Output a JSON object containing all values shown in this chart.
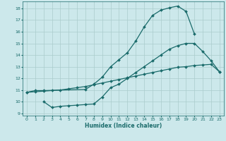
{
  "bg_color": "#cce8eb",
  "grid_color": "#aacccc",
  "line_color": "#1a6b6b",
  "line_width": 0.9,
  "marker": "D",
  "marker_size": 2.0,
  "xlabel": "Humidex (Indice chaleur)",
  "xlim": [
    -0.5,
    23.5
  ],
  "ylim": [
    8.8,
    18.6
  ],
  "xticks": [
    0,
    1,
    2,
    3,
    4,
    5,
    6,
    7,
    8,
    9,
    10,
    11,
    12,
    13,
    14,
    15,
    16,
    17,
    18,
    19,
    20,
    21,
    22,
    23
  ],
  "yticks": [
    9,
    10,
    11,
    12,
    13,
    14,
    15,
    16,
    17,
    18
  ],
  "line1_x": [
    0,
    1,
    2,
    7,
    8,
    9,
    10,
    11,
    12,
    13,
    14,
    15,
    16,
    17,
    18,
    19,
    20
  ],
  "line1_y": [
    10.8,
    10.95,
    10.95,
    11.05,
    11.5,
    12.1,
    13.0,
    13.6,
    14.2,
    15.2,
    16.4,
    17.4,
    17.85,
    18.05,
    18.2,
    17.75,
    15.8
  ],
  "line2_x": [
    0,
    1,
    2,
    3,
    4,
    5,
    6,
    7,
    8,
    9,
    10,
    11,
    12,
    13,
    14,
    15,
    16,
    17,
    18,
    19,
    20,
    21,
    22,
    23
  ],
  "line2_y": [
    10.8,
    10.85,
    10.9,
    10.95,
    11.0,
    11.1,
    11.2,
    11.3,
    11.45,
    11.6,
    11.75,
    11.9,
    12.05,
    12.2,
    12.35,
    12.5,
    12.65,
    12.8,
    12.95,
    13.0,
    13.1,
    13.15,
    13.2,
    12.55
  ],
  "line3_x": [
    2,
    3,
    4,
    5,
    6,
    7,
    8,
    9,
    10,
    11,
    12,
    13,
    14,
    15,
    16,
    17,
    18,
    19,
    20,
    21,
    22,
    23
  ],
  "line3_y": [
    10.0,
    9.5,
    9.6,
    9.65,
    9.7,
    9.75,
    9.8,
    10.4,
    11.2,
    11.5,
    12.0,
    12.5,
    13.0,
    13.5,
    14.0,
    14.5,
    14.8,
    15.0,
    15.0,
    14.3,
    13.5,
    12.55
  ]
}
